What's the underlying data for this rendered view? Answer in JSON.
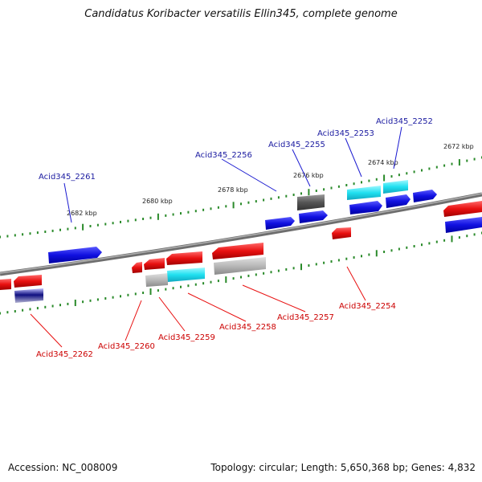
{
  "title": "Candidatus Koribacter versatilis Ellin345, complete genome",
  "footer": {
    "accession": "Accession: NC_008009",
    "topology": "Topology: circular; Length: 5,650,368 bp; Genes: 4,832"
  },
  "colors": {
    "forward_gene": "#1010e0",
    "reverse_gene": "#e81010",
    "rna": "#20e0f0",
    "pseudo": "#b8b8b8",
    "dark": "#555555",
    "forward_label": "#1a1aa0",
    "reverse_label": "#cc0000",
    "tick": "#2a8a2a",
    "backbone": "#888888"
  },
  "scale_labels": [
    "2682 kbp",
    "2680 kbp",
    "2678 kbp",
    "2676 kbp",
    "2674 kbp",
    "2672 kbp"
  ],
  "forward_labels": [
    "Acid345_2261",
    "Acid345_2256",
    "Acid345_2255",
    "Acid345_2253",
    "Acid345_2252"
  ],
  "reverse_labels": [
    "Acid345_2262",
    "Acid345_2260",
    "Acid345_2259",
    "Acid345_2258",
    "Acid345_2257",
    "Acid345_2254"
  ]
}
